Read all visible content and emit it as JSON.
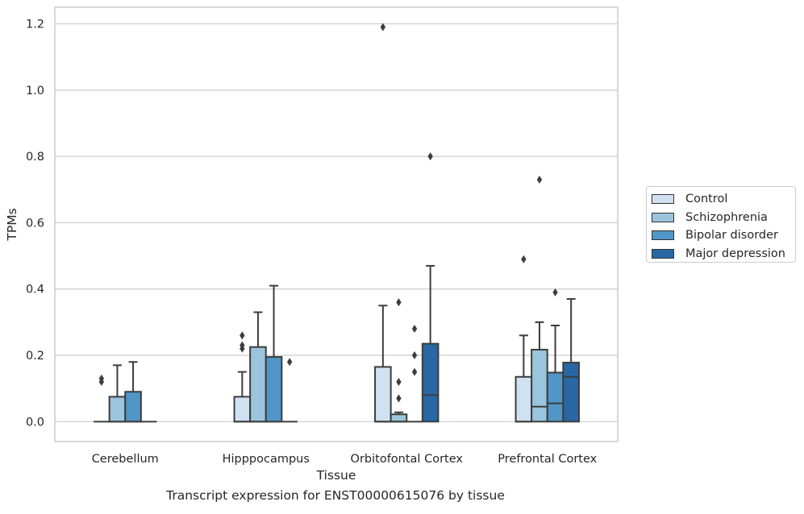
{
  "chart_data": {
    "type": "boxplot",
    "xlabel": "Tissue",
    "ylabel": "TPMs",
    "ylim": [
      -0.06,
      1.25
    ],
    "yticks": [
      0.0,
      0.2,
      0.4,
      0.6,
      0.8,
      1.0,
      1.2
    ],
    "ytick_labels": [
      "0.0",
      "0.2",
      "0.4",
      "0.6",
      "0.8",
      "1.0",
      "1.2"
    ],
    "grid": "horizontal",
    "legend_position": "right",
    "categories": [
      "Cerebellum",
      "Hipppocampus",
      "Orbitofontal Cortex",
      "Prefrontal Cortex"
    ],
    "series": [
      {
        "name": "Control",
        "color": "#d0e1f2",
        "boxes": [
          {
            "q1": 0,
            "median": 0,
            "q3": 0,
            "whisker_low": 0,
            "whisker_high": 0,
            "outliers": [
              0.12,
              0.13
            ]
          },
          {
            "q1": 0,
            "median": 0,
            "q3": 0.075,
            "whisker_low": 0,
            "whisker_high": 0.15,
            "outliers": [
              0.22,
              0.23,
              0.26
            ]
          },
          {
            "q1": 0,
            "median": 0,
            "q3": 0.165,
            "whisker_low": 0,
            "whisker_high": 0.35,
            "outliers": [
              1.19
            ]
          },
          {
            "q1": 0,
            "median": 0,
            "q3": 0.135,
            "whisker_low": 0,
            "whisker_high": 0.26,
            "outliers": [
              0.49
            ]
          }
        ]
      },
      {
        "name": "Schizophrenia",
        "color": "#9ac5dc",
        "boxes": [
          {
            "q1": 0,
            "median": 0,
            "q3": 0.075,
            "whisker_low": 0,
            "whisker_high": 0.17,
            "outliers": []
          },
          {
            "q1": 0,
            "median": 0,
            "q3": 0.225,
            "whisker_low": 0,
            "whisker_high": 0.33,
            "outliers": []
          },
          {
            "q1": 0,
            "median": 0,
            "q3": 0.022,
            "whisker_low": 0,
            "whisker_high": 0.028,
            "outliers": [
              0.07,
              0.12,
              0.36
            ]
          },
          {
            "q1": 0,
            "median": 0.045,
            "q3": 0.217,
            "whisker_low": 0,
            "whisker_high": 0.3,
            "outliers": [
              0.73
            ]
          }
        ]
      },
      {
        "name": "Bipolar disorder",
        "color": "#5096c6",
        "boxes": [
          {
            "q1": 0,
            "median": 0,
            "q3": 0.09,
            "whisker_low": 0,
            "whisker_high": 0.18,
            "outliers": []
          },
          {
            "q1": 0,
            "median": 0,
            "q3": 0.195,
            "whisker_low": 0,
            "whisker_high": 0.41,
            "outliers": []
          },
          {
            "q1": 0,
            "median": 0,
            "q3": 0,
            "whisker_low": 0,
            "whisker_high": 0,
            "outliers": [
              0.15,
              0.2,
              0.28
            ]
          },
          {
            "q1": 0,
            "median": 0.055,
            "q3": 0.148,
            "whisker_low": 0,
            "whisker_high": 0.29,
            "outliers": [
              0.39
            ]
          }
        ]
      },
      {
        "name": "Major depression",
        "color": "#2867a4",
        "boxes": [
          {
            "q1": 0,
            "median": 0,
            "q3": 0,
            "whisker_low": 0,
            "whisker_high": 0,
            "outliers": []
          },
          {
            "q1": 0,
            "median": 0,
            "q3": 0,
            "whisker_low": 0,
            "whisker_high": 0,
            "outliers": [
              0.18
            ]
          },
          {
            "q1": 0,
            "median": 0.08,
            "q3": 0.235,
            "whisker_low": 0,
            "whisker_high": 0.47,
            "outliers": [
              0.8
            ]
          },
          {
            "q1": 0,
            "median": 0.135,
            "q3": 0.178,
            "whisker_low": 0,
            "whisker_high": 0.37,
            "outliers": []
          }
        ]
      }
    ]
  },
  "caption": "Transcript expression for ENST00000615076 by tissue"
}
